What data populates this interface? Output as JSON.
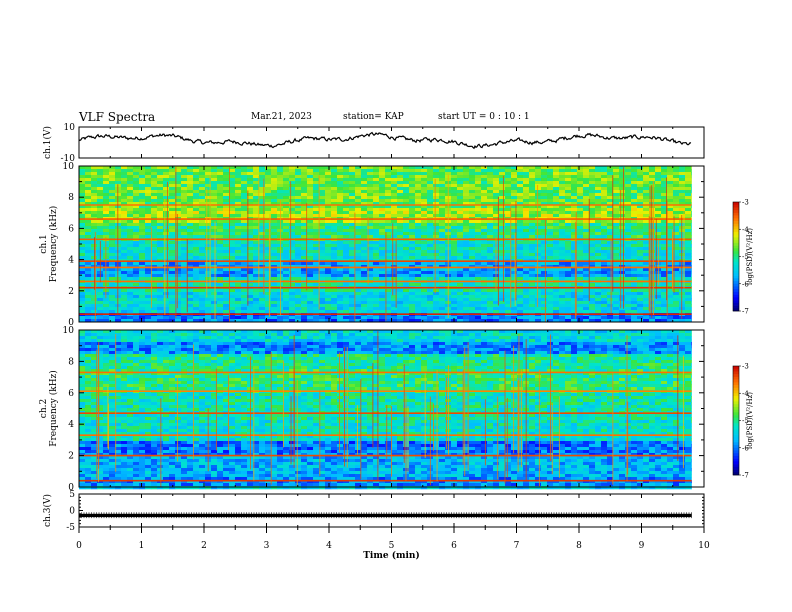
{
  "header": {
    "title": "VLF Spectra",
    "date": "Mar.21, 2023",
    "station": "station= KAP",
    "start": "start  UT =   0 : 10 : 1"
  },
  "chart_data": [
    {
      "type": "line",
      "panel": "ch1-waveform",
      "ylabel": "ch.1(V)",
      "ylim": [
        -10,
        10
      ],
      "ytick_labels": [
        "-10",
        "10"
      ],
      "xlim": [
        0,
        10
      ],
      "data_end_min": 9.8,
      "trace_mean": 1.5,
      "trace_amplitude": 6
    },
    {
      "type": "heatmap",
      "panel": "ch1-spectrogram",
      "ylabel": "ch.1\nFrequency (kHz)",
      "ylabel_lines": [
        "ch.1",
        "Frequency (kHz)"
      ],
      "ylim": [
        0,
        10
      ],
      "yticks": [
        0,
        2,
        4,
        6,
        8,
        10
      ],
      "xlim": [
        0,
        10
      ],
      "colorbar": {
        "min": -7,
        "max": -3,
        "ticks": [
          -7,
          -6,
          -5,
          -4,
          -3
        ],
        "label": "log(PSD)(V²/Hz)"
      },
      "bands": [
        {
          "f": [
            0,
            0.6
          ],
          "level": -6.0
        },
        {
          "f": [
            0.6,
            2.0
          ],
          "level": -5.4
        },
        {
          "f": [
            2.0,
            2.8
          ],
          "level": -5.2
        },
        {
          "f": [
            2.8,
            3.8
          ],
          "level": -5.8
        },
        {
          "f": [
            3.8,
            5.2
          ],
          "level": -5.3
        },
        {
          "f": [
            5.2,
            6.4
          ],
          "level": -5.0
        },
        {
          "f": [
            6.4,
            7.4
          ],
          "level": -4.5
        },
        {
          "f": [
            7.4,
            10.0
          ],
          "level": -4.7
        }
      ],
      "lines": [
        {
          "f": 0.5,
          "level": -3.2
        },
        {
          "f": 2.2,
          "level": -3.3
        },
        {
          "f": 2.6,
          "level": -3.6
        },
        {
          "f": 3.5,
          "level": -3.6
        },
        {
          "f": 3.9,
          "level": -3.4
        },
        {
          "f": 5.3,
          "level": -3.5
        },
        {
          "f": 6.6,
          "level": -3.5
        },
        {
          "f": 7.5,
          "level": -3.6
        }
      ]
    },
    {
      "type": "heatmap",
      "panel": "ch2-spectrogram",
      "ylabel": "ch.2\nFrequency (kHz)",
      "ylabel_lines": [
        "ch.2",
        "Frequency (kHz)"
      ],
      "ylim": [
        0,
        10
      ],
      "yticks": [
        0,
        2,
        4,
        6,
        8,
        10
      ],
      "xlim": [
        0,
        10
      ],
      "colorbar": {
        "min": -7,
        "max": -3,
        "ticks": [
          -7,
          -6,
          -5,
          -4,
          -3
        ],
        "label": "log(PSD)(V²/Hz)"
      },
      "bands": [
        {
          "f": [
            0,
            0.6
          ],
          "level": -5.9
        },
        {
          "f": [
            0.6,
            1.9
          ],
          "level": -5.7
        },
        {
          "f": [
            1.9,
            3.0
          ],
          "level": -6.0
        },
        {
          "f": [
            3.0,
            4.2
          ],
          "level": -5.3
        },
        {
          "f": [
            4.2,
            6.0
          ],
          "level": -5.2
        },
        {
          "f": [
            6.0,
            7.6
          ],
          "level": -5.0
        },
        {
          "f": [
            7.6,
            8.4
          ],
          "level": -5.1
        },
        {
          "f": [
            8.4,
            9.2
          ],
          "level": -5.9
        },
        {
          "f": [
            9.2,
            10.0
          ],
          "level": -5.4
        }
      ],
      "lines": [
        {
          "f": 0.4,
          "level": -3.3
        },
        {
          "f": 2.0,
          "level": -3.4
        },
        {
          "f": 3.3,
          "level": -3.6
        },
        {
          "f": 4.7,
          "level": -3.4
        },
        {
          "f": 6.1,
          "level": -3.7
        },
        {
          "f": 7.3,
          "level": -3.6
        }
      ]
    },
    {
      "type": "line",
      "panel": "ch3-waveform",
      "ylabel": "ch.3(V)",
      "ylim": [
        -5,
        5
      ],
      "yticks": [
        -5,
        0,
        5
      ],
      "xlim": [
        0,
        10
      ],
      "xticks": [
        0,
        1,
        2,
        3,
        4,
        5,
        6,
        7,
        8,
        9,
        10
      ],
      "xlabel": "Time  (min)",
      "data_end_min": 9.8,
      "trace_level": -1.5,
      "trace_amplitude": 0.5
    }
  ]
}
